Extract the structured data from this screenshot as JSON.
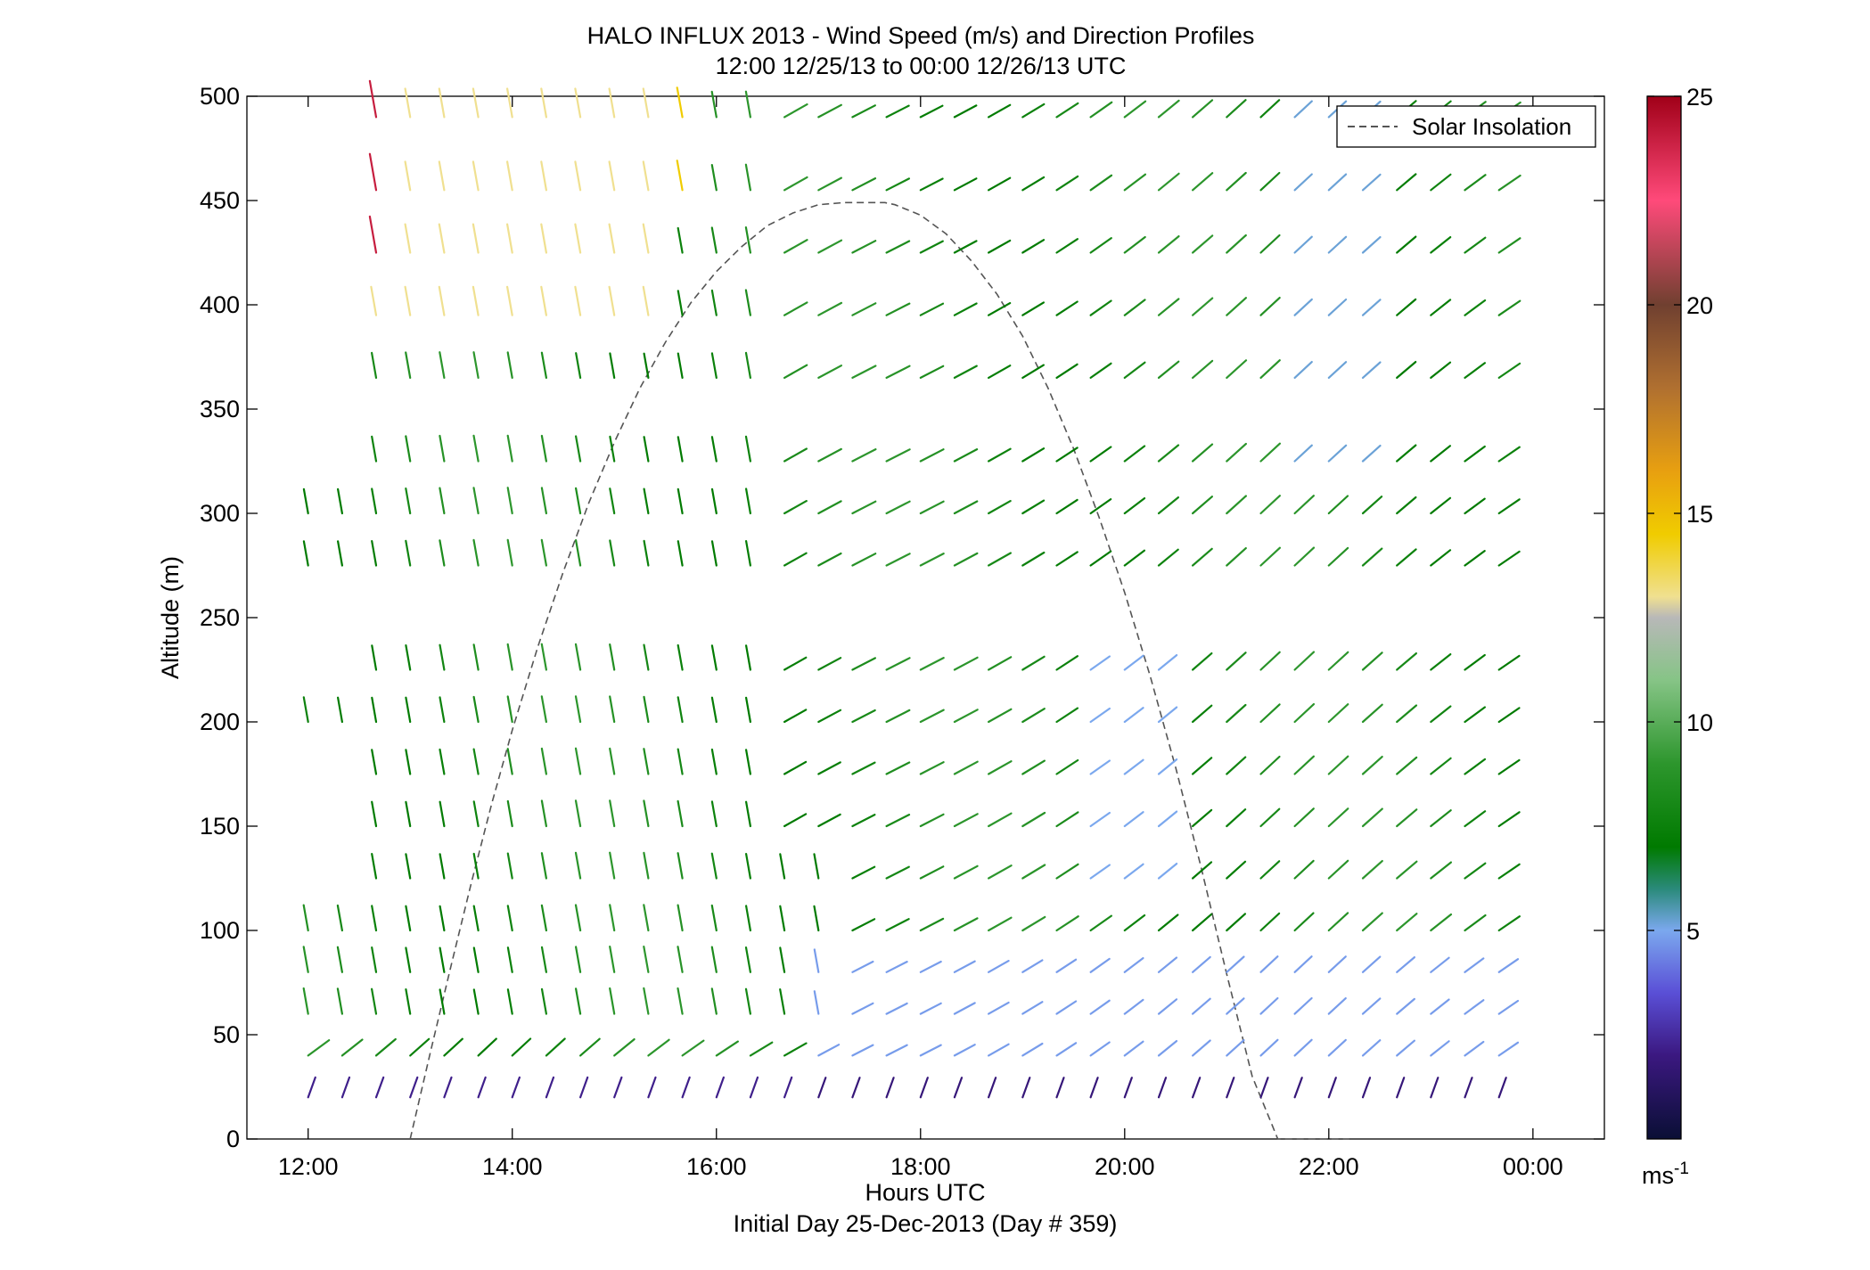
{
  "chart_data": {
    "type": "quiver",
    "title": "HALO INFLUX 2013 - Wind Speed (m/s) and Direction Profiles",
    "subtitle": "12:00 12/25/13 to 00:00 12/26/13  UTC",
    "xlabel": "Hours UTC",
    "xlabel2": "Initial Day 25-Dec-2013 (Day # 359)",
    "ylabel": "Altitude (m)",
    "xlim": [
      11.4,
      24.7
    ],
    "ylim": [
      0,
      500
    ],
    "x_ticks": [
      12,
      14,
      16,
      18,
      20,
      22,
      24
    ],
    "x_tick_labels": [
      "12:00",
      "14:00",
      "16:00",
      "18:00",
      "20:00",
      "22:00",
      "00:00"
    ],
    "y_ticks": [
      0,
      50,
      100,
      150,
      200,
      250,
      300,
      350,
      400,
      450,
      500
    ],
    "y_tick_labels": [
      "0",
      "50",
      "100",
      "150",
      "200",
      "250",
      "300",
      "350",
      "400",
      "450",
      "500"
    ],
    "legend": {
      "entries": [
        "Solar Insolation"
      ],
      "position": "top-right"
    },
    "colorbar": {
      "range": [
        0,
        25
      ],
      "ticks": [
        5,
        10,
        15,
        20,
        25
      ],
      "tick_labels": [
        "5",
        "10",
        "15",
        "20",
        "25"
      ],
      "unit_label": "ms",
      "unit_exp": "-1"
    },
    "solar_insolation_curve": {
      "style": "dashed",
      "color": "#555555",
      "x": [
        13.0,
        13.2,
        13.4,
        13.6,
        13.8,
        14.0,
        14.25,
        14.5,
        14.75,
        15.0,
        15.25,
        15.5,
        15.75,
        16.0,
        16.25,
        16.5,
        16.75,
        17.0,
        17.25,
        17.5,
        17.65,
        17.75,
        18.0,
        18.25,
        18.5,
        18.75,
        19.0,
        19.25,
        19.5,
        19.75,
        20.0,
        20.25,
        20.5,
        20.75,
        21.0,
        21.25,
        21.5,
        21.75,
        22.0,
        22.2
      ],
      "y": [
        0,
        42,
        83,
        123,
        161,
        196,
        236,
        272,
        305,
        334,
        360,
        382,
        401,
        416,
        428,
        438,
        444,
        448,
        449,
        449,
        449,
        448,
        443,
        434,
        421,
        405,
        385,
        360,
        331,
        298,
        262,
        222,
        178,
        130,
        79,
        30,
        0,
        -1,
        -1,
        -1
      ]
    },
    "barb_rows_altitude_m": [
      20,
      40,
      60,
      80,
      100,
      125,
      150,
      175,
      200,
      225,
      275,
      300,
      325,
      365,
      395,
      425,
      455,
      490
    ],
    "speed_colorscale": [
      {
        "v": 0,
        "c": "#0a0f35"
      },
      {
        "v": 2,
        "c": "#3b1880"
      },
      {
        "v": 3.5,
        "c": "#5a4fd6"
      },
      {
        "v": 5,
        "c": "#7ba8ee"
      },
      {
        "v": 6,
        "c": "#2a8a7a"
      },
      {
        "v": 7,
        "c": "#007a00"
      },
      {
        "v": 9,
        "c": "#2d962d"
      },
      {
        "v": 11,
        "c": "#86c486"
      },
      {
        "v": 12.5,
        "c": "#b8b8b8"
      },
      {
        "v": 13,
        "c": "#f0e090"
      },
      {
        "v": 14.5,
        "c": "#f0cc00"
      },
      {
        "v": 16,
        "c": "#e8a010"
      },
      {
        "v": 18,
        "c": "#b07030"
      },
      {
        "v": 20,
        "c": "#704030"
      },
      {
        "v": 22.5,
        "c": "#ff4a7a"
      },
      {
        "v": 25,
        "c": "#a00018"
      }
    ]
  }
}
